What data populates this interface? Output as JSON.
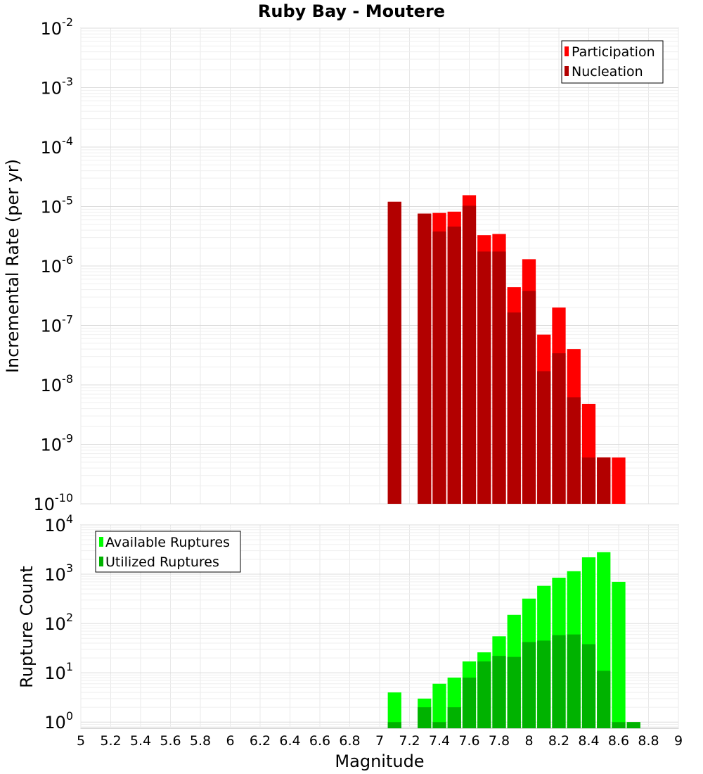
{
  "chart_data": [
    {
      "type": "bar",
      "title": "Ruby Bay - Moutere",
      "xlabel": "",
      "ylabel": "Incremental Rate (per yr)",
      "yscale": "log",
      "ylim": [
        1e-10,
        0.01
      ],
      "xlim": [
        5,
        9
      ],
      "grid": true,
      "legend_position": "top-right",
      "series": [
        {
          "name": "Participation",
          "color": "#ff0000",
          "x": [
            7.1,
            7.3,
            7.4,
            7.5,
            7.6,
            7.7,
            7.8,
            7.9,
            8.0,
            8.1,
            8.2,
            8.3,
            8.4,
            8.5,
            8.6
          ],
          "values": [
            1.2e-05,
            7.6e-06,
            7.8e-06,
            8.2e-06,
            1.55e-05,
            3.3e-06,
            3.45e-06,
            4.4e-07,
            1.3e-06,
            7e-08,
            2e-07,
            4e-08,
            4.8e-09,
            6e-10,
            6e-10
          ]
        },
        {
          "name": "Nucleation",
          "color": "#b20000",
          "x": [
            7.1,
            7.3,
            7.4,
            7.5,
            7.6,
            7.7,
            7.8,
            7.9,
            8.0,
            8.1,
            8.2,
            8.3,
            8.4,
            8.5
          ],
          "values": [
            1.2e-05,
            7.6e-06,
            3.8e-06,
            4.6e-06,
            1.03e-05,
            1.75e-06,
            1.75e-06,
            1.65e-07,
            3.8e-07,
            1.7e-08,
            3.4e-08,
            6.2e-09,
            6e-10,
            6e-10
          ]
        }
      ],
      "y_ticks": [
        {
          "base": "10",
          "exp": "-2"
        },
        {
          "base": "10",
          "exp": "-3"
        },
        {
          "base": "10",
          "exp": "-4"
        },
        {
          "base": "10",
          "exp": "-5"
        },
        {
          "base": "10",
          "exp": "-6"
        },
        {
          "base": "10",
          "exp": "-7"
        },
        {
          "base": "10",
          "exp": "-8"
        },
        {
          "base": "10",
          "exp": "-9"
        },
        {
          "base": "10",
          "exp": "-10"
        }
      ]
    },
    {
      "type": "bar",
      "title": "",
      "xlabel": "Magnitude",
      "ylabel": "Rupture Count",
      "yscale": "log",
      "ylim": [
        0.75,
        10000
      ],
      "xlim": [
        5,
        9
      ],
      "grid": true,
      "legend_position": "top-left",
      "series": [
        {
          "name": "Available Ruptures",
          "color": "#00ff00",
          "x": [
            7.1,
            7.3,
            7.4,
            7.5,
            7.6,
            7.7,
            7.8,
            7.9,
            8.0,
            8.1,
            8.2,
            8.3,
            8.4,
            8.5,
            8.6,
            8.7
          ],
          "values": [
            4,
            3,
            6,
            8,
            17,
            26,
            55,
            150,
            320,
            580,
            850,
            1150,
            2200,
            2800,
            700,
            1
          ]
        },
        {
          "name": "Utilized Ruptures",
          "color": "#00b200",
          "x": [
            7.1,
            7.3,
            7.4,
            7.5,
            7.6,
            7.7,
            7.8,
            7.9,
            8.0,
            8.1,
            8.2,
            8.3,
            8.4,
            8.5,
            8.6,
            8.7
          ],
          "values": [
            1,
            2,
            1,
            2,
            8,
            17,
            22,
            21,
            42,
            45,
            58,
            60,
            38,
            11,
            1,
            1
          ]
        }
      ],
      "y_ticks": [
        {
          "base": "10",
          "exp": "4"
        },
        {
          "base": "10",
          "exp": "3"
        },
        {
          "base": "10",
          "exp": "2"
        },
        {
          "base": "10",
          "exp": "1"
        },
        {
          "base": "10",
          "exp": "0"
        }
      ],
      "x_ticks": [
        "5",
        "5.2",
        "5.4",
        "5.6",
        "5.8",
        "6",
        "6.2",
        "6.4",
        "6.6",
        "6.8",
        "7",
        "7.2",
        "7.4",
        "7.6",
        "7.8",
        "8",
        "8.2",
        "8.4",
        "8.6",
        "8.8",
        "9"
      ]
    }
  ]
}
